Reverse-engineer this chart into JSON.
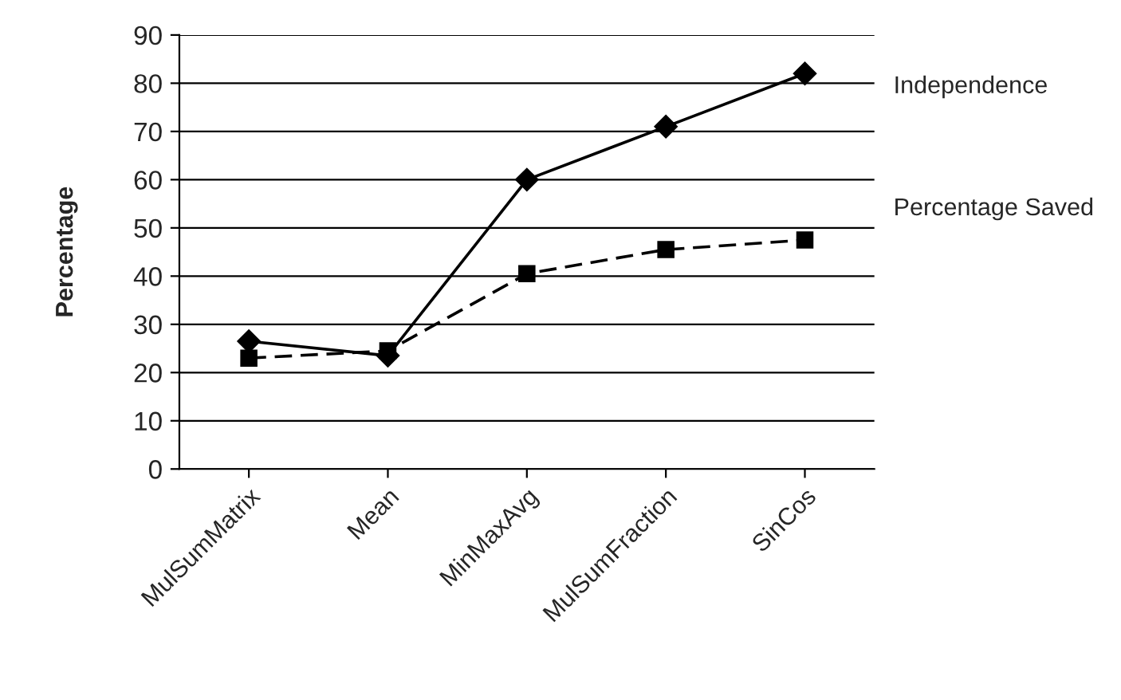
{
  "chart_data": {
    "type": "line",
    "ylabel": "Percentage",
    "categories": [
      "MulSumMatrix",
      "Mean",
      "MinMaxAvg",
      "MulSumFraction",
      "SinCos"
    ],
    "series": [
      {
        "name": "Independence",
        "color": "#000000",
        "marker": "diamond",
        "line_style": "solid",
        "values": [
          26.5,
          23.5,
          60,
          71,
          82
        ]
      },
      {
        "name": "Percentage Saved",
        "color": "#000000",
        "marker": "square",
        "line_style": "dashed",
        "values": [
          23,
          24.5,
          40.5,
          45.5,
          47.5
        ]
      }
    ],
    "ylim": [
      0,
      90
    ],
    "yticks": [
      0,
      10,
      20,
      30,
      40,
      50,
      60,
      70,
      80,
      90
    ],
    "grid": "y",
    "legend": false
  }
}
